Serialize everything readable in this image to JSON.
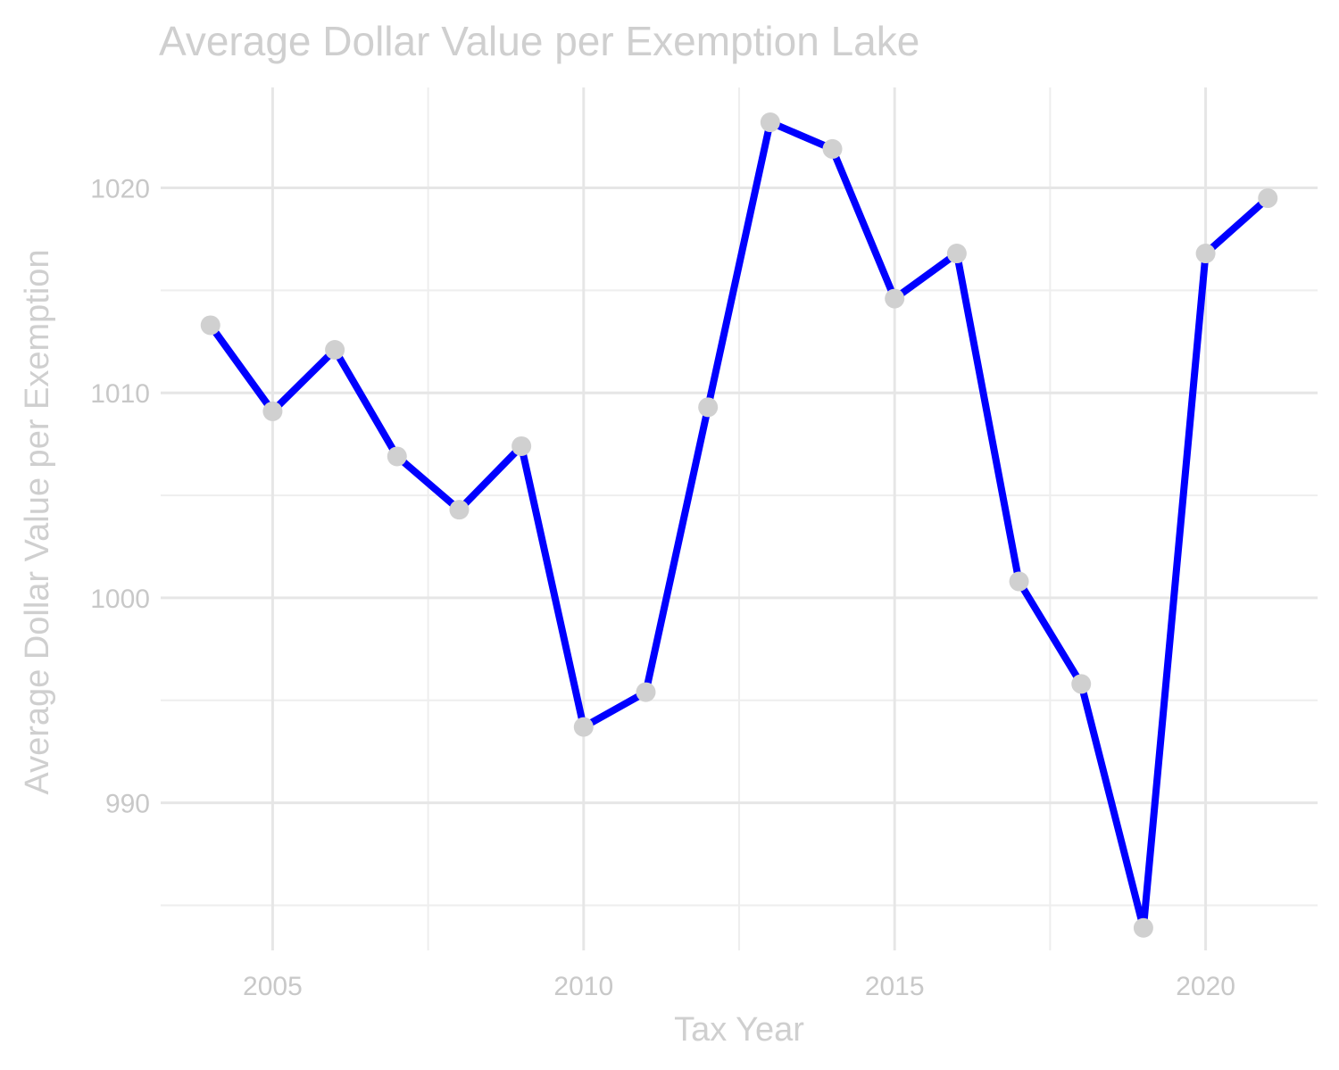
{
  "chart_data": {
    "type": "line",
    "title": "Average Dollar Value per Exemption Lake",
    "xlabel": "Tax Year",
    "ylabel": "Average Dollar Value per Exemption",
    "x": [
      2004,
      2005,
      2006,
      2007,
      2008,
      2009,
      2010,
      2011,
      2012,
      2013,
      2014,
      2015,
      2016,
      2017,
      2018,
      2019,
      2020,
      2021
    ],
    "series": [
      {
        "name": "Average Dollar Value per Exemption",
        "values": [
          1013.3,
          1009.1,
          1012.1,
          1006.9,
          1004.3,
          1007.4,
          993.7,
          995.4,
          1009.3,
          1023.2,
          1021.9,
          1014.6,
          1016.8,
          1000.8,
          995.8,
          983.9,
          1016.8,
          1019.5
        ]
      }
    ],
    "xlim": [
      2003.2,
      2021.8
    ],
    "ylim": [
      982.8,
      1024.9
    ],
    "x_ticks": [
      "2005",
      "2010",
      "2015",
      "2020"
    ],
    "y_ticks": [
      "990",
      "1000",
      "1010",
      "1020"
    ],
    "grid": true,
    "legend": "none",
    "colors": {
      "line": "#0000ff",
      "point": "#d0d0d0",
      "grid": "#e6e6e6",
      "text": "#cfcfcf"
    }
  }
}
